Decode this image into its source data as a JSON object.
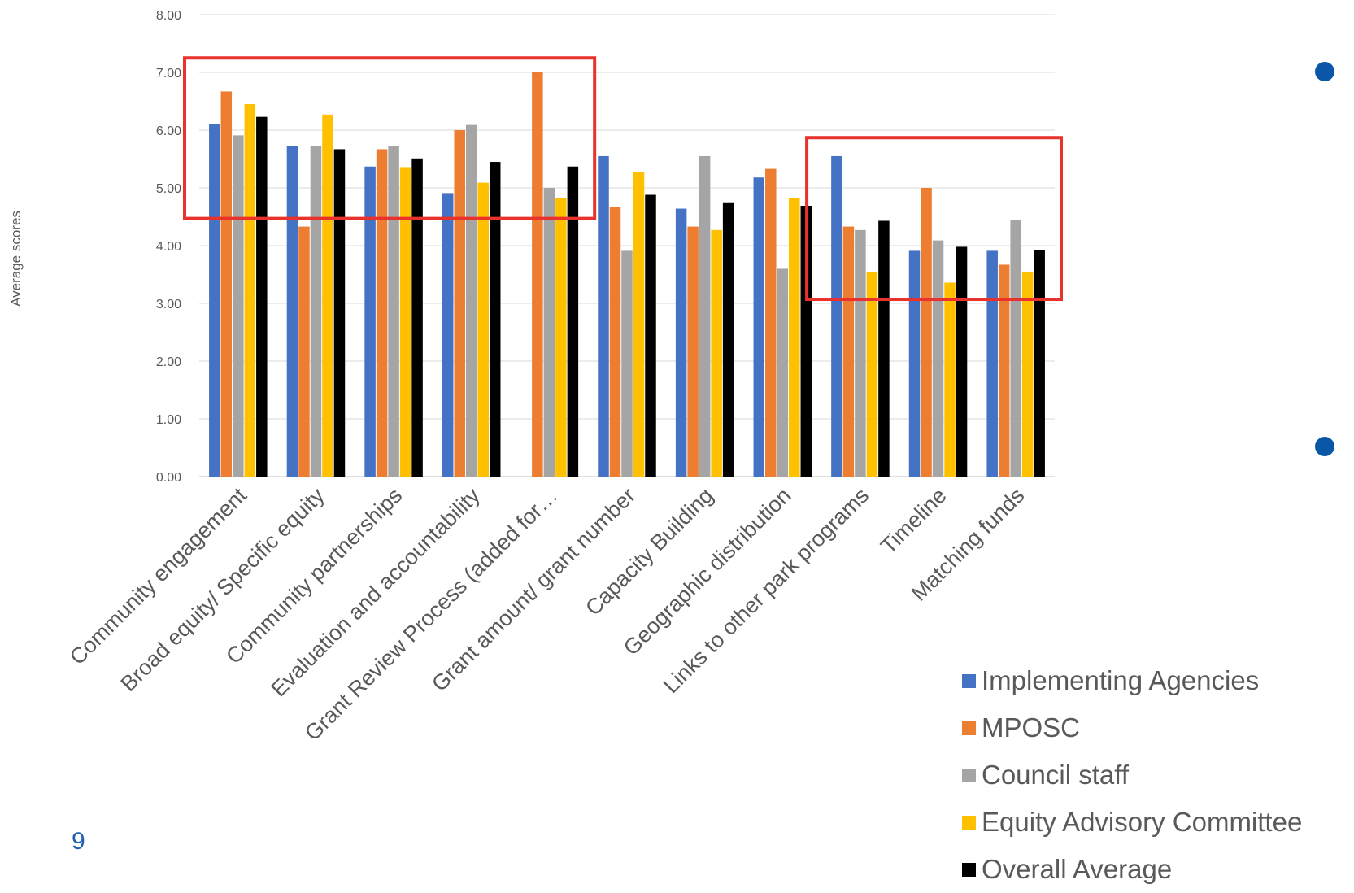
{
  "chart_data": {
    "type": "bar",
    "title": "",
    "xlabel": "",
    "ylabel": "Average scores",
    "ylim": [
      0,
      8
    ],
    "yticks": [
      "0.00",
      "1.00",
      "2.00",
      "3.00",
      "4.00",
      "5.00",
      "6.00",
      "7.00",
      "8.00"
    ],
    "grid": true,
    "legend_position": "bottom-right",
    "categories": [
      "Community engagement",
      "Broad equity/ Specific equity",
      "Community partnerships",
      "Evaluation and accountability",
      "Grant Review Process (added for…",
      "Grant amount/ grant number",
      "Capacity Building",
      "Geographic distribution",
      "Links to other park programs",
      "Timeline",
      "Matching funds"
    ],
    "series": [
      {
        "name": "Implementing Agencies",
        "color": "#4472c4",
        "values": [
          6.1,
          5.73,
          5.37,
          4.91,
          null,
          5.55,
          4.64,
          5.18,
          5.55,
          3.91,
          3.91
        ]
      },
      {
        "name": "MPOSC",
        "color": "#ed7d31",
        "values": [
          6.67,
          4.33,
          5.67,
          6.0,
          7.0,
          4.67,
          4.33,
          5.33,
          4.33,
          5.0,
          3.67
        ]
      },
      {
        "name": "Council staff",
        "color": "#a5a5a5",
        "values": [
          5.91,
          5.73,
          5.73,
          6.09,
          5.0,
          3.91,
          5.55,
          3.6,
          4.27,
          4.09,
          4.45
        ]
      },
      {
        "name": "Equity Advisory Committee",
        "color": "#ffc000",
        "values": [
          6.45,
          6.27,
          5.36,
          5.09,
          4.82,
          5.27,
          4.27,
          4.82,
          3.55,
          3.36,
          3.55
        ]
      },
      {
        "name": "Overall Average",
        "color": "#000000",
        "values": [
          6.23,
          5.67,
          5.51,
          5.45,
          5.37,
          4.88,
          4.75,
          4.69,
          4.43,
          3.98,
          3.92
        ]
      }
    ],
    "highlight_boxes": [
      {
        "color": "#e8322b",
        "x_from": "Community engagement",
        "x_to": "Grant Review Process (added for…",
        "y_range": [
          4.47,
          7.25
        ]
      },
      {
        "color": "#e8322b",
        "x_from": "Links to other park programs",
        "x_to": "Matching funds",
        "y_range": [
          3.07,
          5.87
        ]
      }
    ]
  },
  "page": {
    "number": "9",
    "bullet_color": "#0a57a8",
    "bullet_count": 2
  }
}
